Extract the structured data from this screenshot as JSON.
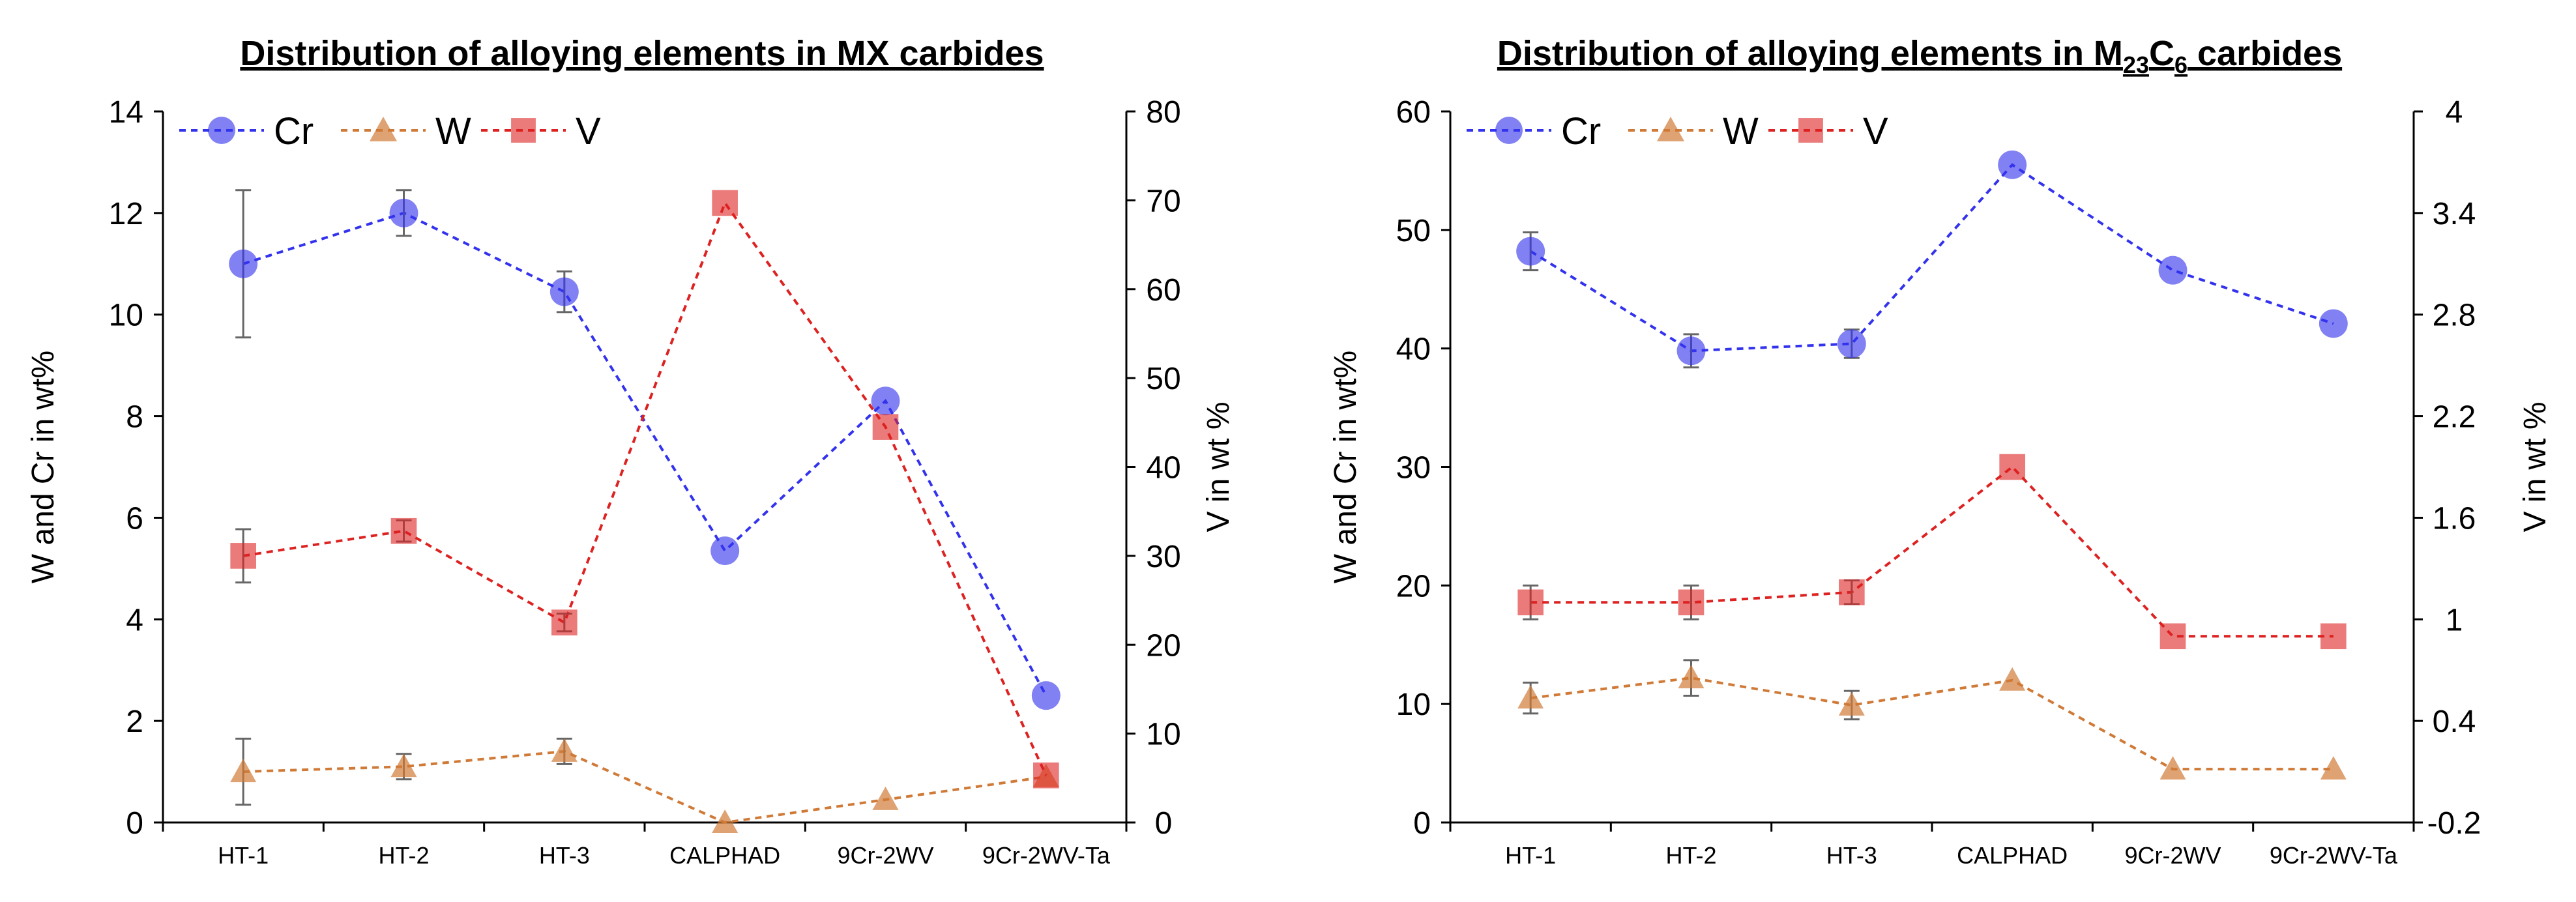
{
  "chart_data": [
    {
      "type": "line",
      "title": "Distribution of alloying elements in MX carbides",
      "categories": [
        "HT-1",
        "HT-2",
        "HT-3",
        "CALPHAD",
        "9Cr-2WV",
        "9Cr-2WV-Ta"
      ],
      "ylabel": "W and Cr in wt%",
      "y2label": "V in wt %",
      "ylim": [
        0,
        14
      ],
      "yticks": [
        0,
        2,
        4,
        6,
        8,
        10,
        12,
        14
      ],
      "ytick_labels": [
        "0",
        "2",
        "4",
        "6",
        "8",
        "10",
        "12",
        "14"
      ],
      "y2lim": [
        0,
        80
      ],
      "y2ticks": [
        0,
        10,
        20,
        30,
        40,
        50,
        60,
        70,
        80
      ],
      "y2tick_labels": [
        "0",
        "10",
        "20",
        "30",
        "40",
        "50",
        "60",
        "70",
        "80"
      ],
      "legend_position": "top-left",
      "series": [
        {
          "name": "Cr",
          "axis": "left",
          "color": "#3333ee",
          "marker": "circle",
          "values": [
            11.0,
            12.0,
            10.45,
            5.35,
            8.3,
            2.5
          ],
          "errors": [
            1.45,
            0.45,
            0.4,
            0,
            0,
            0
          ]
        },
        {
          "name": "W",
          "axis": "left",
          "color": "#d07a38",
          "marker": "triangle",
          "values": [
            1.0,
            1.1,
            1.4,
            0.0,
            0.45,
            0.9
          ],
          "errors": [
            0.65,
            0.25,
            0.25,
            0,
            0,
            0
          ]
        },
        {
          "name": "V",
          "axis": "right",
          "color": "#dd2222",
          "marker": "square",
          "values": [
            30.0,
            32.8,
            22.5,
            69.7,
            44.5,
            5.3
          ],
          "errors": [
            3.0,
            1.2,
            1.0,
            0,
            0,
            0
          ]
        }
      ]
    },
    {
      "type": "line",
      "title": "Distribution of alloying elements in M",
      "title_sub1": "23",
      "title_mid": "C",
      "title_sub2": "6",
      "title_end": " carbides",
      "categories": [
        "HT-1",
        "HT-2",
        "HT-3",
        "CALPHAD",
        "9Cr-2WV",
        "9Cr-2WV-Ta"
      ],
      "ylabel": "W and Cr in wt%",
      "y2label": "V in wt %",
      "ylim": [
        0,
        60
      ],
      "yticks": [
        0,
        10,
        20,
        30,
        40,
        50,
        60
      ],
      "ytick_labels": [
        "0",
        "10",
        "20",
        "30",
        "40",
        "50",
        "60"
      ],
      "y2lim": [
        -0.2,
        4
      ],
      "y2ticks": [
        -0.2,
        0.4,
        1.0,
        1.6,
        2.2,
        2.8,
        3.4,
        4.0
      ],
      "y2tick_labels": [
        "-0.2",
        "0.4",
        "1",
        "1.6",
        "2.2",
        "2.8",
        "3.4",
        "4"
      ],
      "legend_position": "top-left",
      "series": [
        {
          "name": "Cr",
          "axis": "left",
          "color": "#3333ee",
          "marker": "circle",
          "values": [
            48.2,
            39.8,
            40.4,
            55.5,
            46.6,
            42.1
          ],
          "errors": [
            1.6,
            1.4,
            1.2,
            0,
            0,
            0
          ]
        },
        {
          "name": "W",
          "axis": "left",
          "color": "#d07a38",
          "marker": "triangle",
          "values": [
            10.5,
            12.2,
            9.9,
            12.0,
            4.5,
            4.5
          ],
          "errors": [
            1.3,
            1.5,
            1.2,
            0,
            0,
            0
          ]
        },
        {
          "name": "V",
          "axis": "right",
          "color": "#dd2222",
          "marker": "square",
          "values": [
            1.1,
            1.1,
            1.16,
            1.9,
            0.9,
            0.9
          ],
          "errors": [
            0.1,
            0.1,
            0.07,
            0,
            0,
            0
          ]
        }
      ]
    }
  ]
}
